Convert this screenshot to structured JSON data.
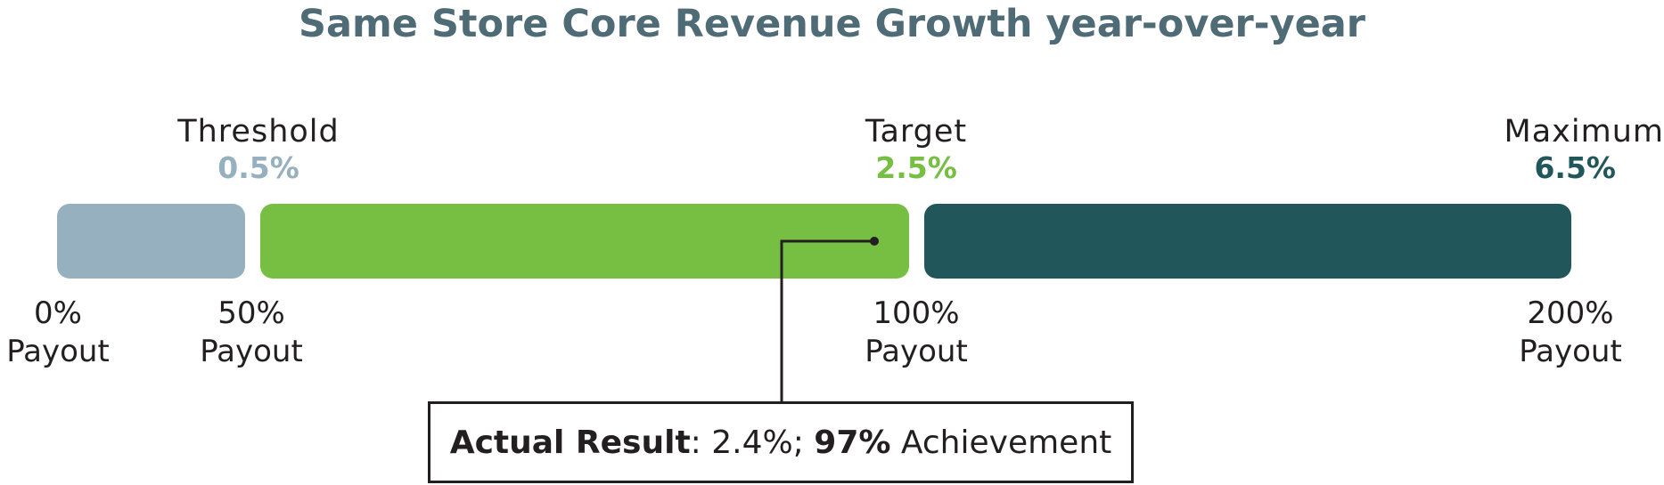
{
  "title": "Same Store Core Revenue Growth year-over-year",
  "colors": {
    "threshold": "#97b0bf",
    "target": "#76bf43",
    "maximum": "#21575a",
    "title": "#4e6b76",
    "text": "#231f20"
  },
  "levels": {
    "threshold": {
      "label": "Threshold",
      "value": "0.5%"
    },
    "target": {
      "label": "Target",
      "value": "2.5%"
    },
    "maximum": {
      "label": "Maximum",
      "value": "6.5%"
    }
  },
  "payouts": [
    {
      "pct": "0%",
      "word": "Payout"
    },
    {
      "pct": "50%",
      "word": "Payout"
    },
    {
      "pct": "100%",
      "word": "Payout"
    },
    {
      "pct": "200%",
      "word": "Payout"
    }
  ],
  "result": {
    "label_bold": "Actual Result",
    "sep": ": ",
    "value": "2.4%; ",
    "achievement_bold": "97%",
    "achievement_text": " Achievement"
  },
  "chart_data": {
    "type": "bar",
    "title": "Same Store Core Revenue Growth year-over-year",
    "segments": [
      {
        "name": "Threshold",
        "payout_from": "0%",
        "payout_to": "50%",
        "color": "#97b0bf"
      },
      {
        "name": "Target",
        "payout_from": "50%",
        "payout_to": "100%",
        "color": "#76bf43"
      },
      {
        "name": "Maximum",
        "payout_from": "100%",
        "payout_to": "200%",
        "color": "#21575a"
      }
    ],
    "goals": [
      {
        "name": "Threshold",
        "value": 0.5,
        "payout": 50
      },
      {
        "name": "Target",
        "value": 2.5,
        "payout": 100
      },
      {
        "name": "Maximum",
        "value": 6.5,
        "payout": 200
      }
    ],
    "actual": {
      "value": 2.4,
      "achievement": 97
    }
  }
}
